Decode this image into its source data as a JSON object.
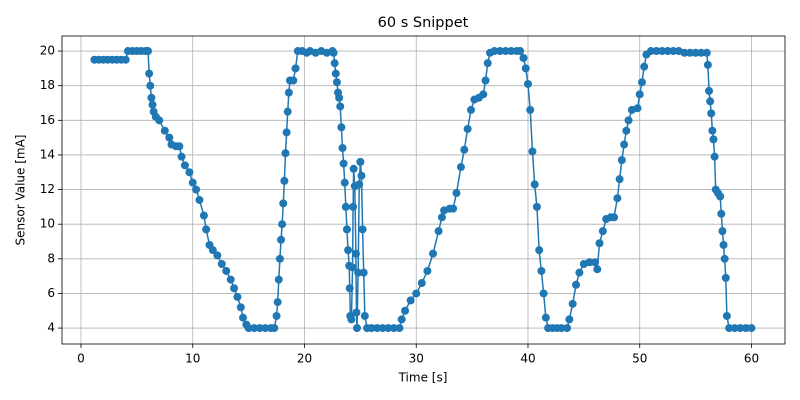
{
  "chart_data": {
    "type": "line",
    "title": "60 s Snippet",
    "x_label": "Time [s]",
    "y_label": "Sensor Value [mA]",
    "color": "#1f77b4",
    "grid": true,
    "xlim": [
      -1.7,
      63
    ],
    "ylim": [
      3.08,
      20.87
    ],
    "xticks": [
      0,
      10,
      20,
      30,
      40,
      50,
      60
    ],
    "yticks": [
      4,
      6,
      8,
      10,
      12,
      14,
      16,
      18,
      20
    ],
    "x": [
      1.2,
      1.6,
      2,
      2.4,
      2.8,
      3.2,
      3.6,
      4,
      4.2,
      4.6,
      5,
      5.4,
      5.8,
      6,
      6.1,
      6.2,
      6.3,
      6.4,
      6.5,
      6.7,
      7,
      7.5,
      7.9,
      8.1,
      8.5,
      8.8,
      9,
      9.3,
      9.7,
      10,
      10.3,
      10.6,
      11,
      11.2,
      11.5,
      11.8,
      12.2,
      12.6,
      13,
      13.4,
      13.7,
      14,
      14.3,
      14.5,
      14.8,
      15,
      15.5,
      16,
      16.5,
      17,
      17.3,
      17.5,
      17.6,
      17.7,
      17.8,
      17.9,
      18,
      18.1,
      18.2,
      18.3,
      18.4,
      18.5,
      18.6,
      18.7,
      19,
      19.2,
      19.4,
      19.8,
      20.2,
      20.5,
      21,
      21.5,
      22,
      22.5,
      22.6,
      22.7,
      22.8,
      22.9,
      23,
      23.1,
      23.2,
      23.3,
      23.4,
      23.5,
      23.6,
      23.7,
      23.8,
      23.9,
      24,
      24.05,
      24.1,
      24.2,
      24.3,
      24.35,
      24.4,
      24.5,
      24.6,
      24.65,
      24.7,
      24.8,
      24.9,
      25,
      25.1,
      25.2,
      25.3,
      25.4,
      25.6,
      26,
      26.5,
      27,
      27.5,
      28,
      28.5,
      28.7,
      29,
      29.5,
      30,
      30.5,
      31,
      31.5,
      32,
      32.3,
      32.5,
      33,
      33.3,
      33.6,
      34,
      34.3,
      34.6,
      34.9,
      35.2,
      35.6,
      36,
      36.2,
      36.4,
      36.6,
      37,
      37.5,
      38,
      38.5,
      39,
      39.3,
      39.6,
      39.8,
      40,
      40.2,
      40.4,
      40.6,
      40.8,
      41,
      41.2,
      41.4,
      41.6,
      41.8,
      42.2,
      42.6,
      43,
      43.5,
      43.7,
      44,
      44.3,
      44.6,
      45,
      45.5,
      46,
      46.2,
      46.4,
      46.7,
      47,
      47.4,
      47.7,
      48,
      48.2,
      48.4,
      48.6,
      48.8,
      49,
      49.3,
      49.8,
      50,
      50.2,
      50.4,
      50.6,
      51,
      51.5,
      52,
      52.5,
      53,
      53.5,
      54,
      54.5,
      55,
      55.5,
      56,
      56.1,
      56.2,
      56.3,
      56.4,
      56.5,
      56.6,
      56.7,
      56.8,
      57,
      57.2,
      57.3,
      57.4,
      57.5,
      57.6,
      57.7,
      57.8,
      58,
      58.5,
      59,
      59.5,
      60
    ],
    "values": [
      19.5,
      19.5,
      19.5,
      19.5,
      19.5,
      19.5,
      19.5,
      19.5,
      20,
      20,
      20,
      20,
      20,
      20,
      18.7,
      18,
      17.3,
      16.9,
      16.5,
      16.2,
      16,
      15.4,
      15,
      14.6,
      14.5,
      14.5,
      13.9,
      13.4,
      13,
      12.4,
      12,
      11.4,
      10.5,
      9.7,
      8.8,
      8.5,
      8.2,
      7.7,
      7.3,
      6.8,
      6.3,
      5.8,
      5.2,
      4.6,
      4.2,
      4,
      4,
      4,
      4,
      4,
      4,
      4.7,
      5.5,
      6.8,
      8,
      9.1,
      10,
      11.2,
      12.5,
      14.1,
      15.3,
      16.5,
      17.6,
      18.3,
      18.3,
      19,
      20,
      20,
      19.9,
      20,
      19.9,
      20,
      19.9,
      20,
      19.9,
      19.3,
      18.7,
      18.2,
      17.6,
      17.3,
      16.8,
      15.6,
      14.4,
      13.5,
      12.4,
      11,
      9.7,
      8.5,
      7.6,
      6.3,
      4.7,
      4.5,
      7.5,
      11,
      13.2,
      12.2,
      8.3,
      4.9,
      4,
      7.2,
      12.3,
      13.6,
      12.8,
      9.7,
      7.2,
      4.7,
      4,
      4,
      4,
      4,
      4,
      4,
      4,
      4.5,
      5,
      5.6,
      6,
      6.6,
      7.3,
      8.3,
      9.6,
      10.4,
      10.8,
      10.9,
      10.9,
      11.8,
      13.3,
      14.3,
      15.5,
      16.6,
      17.2,
      17.3,
      17.5,
      18.3,
      19.3,
      19.9,
      20,
      20,
      20,
      20,
      20,
      20,
      19.6,
      19,
      18.1,
      16.6,
      14.2,
      12.3,
      11,
      8.5,
      7.3,
      6,
      4.6,
      4,
      4,
      4,
      4,
      4,
      4.5,
      5.4,
      6.5,
      7.2,
      7.7,
      7.8,
      7.8,
      7.4,
      8.9,
      9.6,
      10.3,
      10.4,
      10.4,
      11.5,
      12.6,
      13.7,
      14.6,
      15.4,
      16,
      16.6,
      16.7,
      17.5,
      18.2,
      19.1,
      19.8,
      20,
      20,
      20,
      20,
      20,
      20,
      19.9,
      19.9,
      19.9,
      19.9,
      19.9,
      19.2,
      17.7,
      17.1,
      16.4,
      15.4,
      14.9,
      13.9,
      12,
      11.8,
      11.6,
      10.6,
      9.6,
      8.8,
      8,
      6.9,
      4.7,
      4,
      4,
      4,
      4,
      4
    ]
  }
}
